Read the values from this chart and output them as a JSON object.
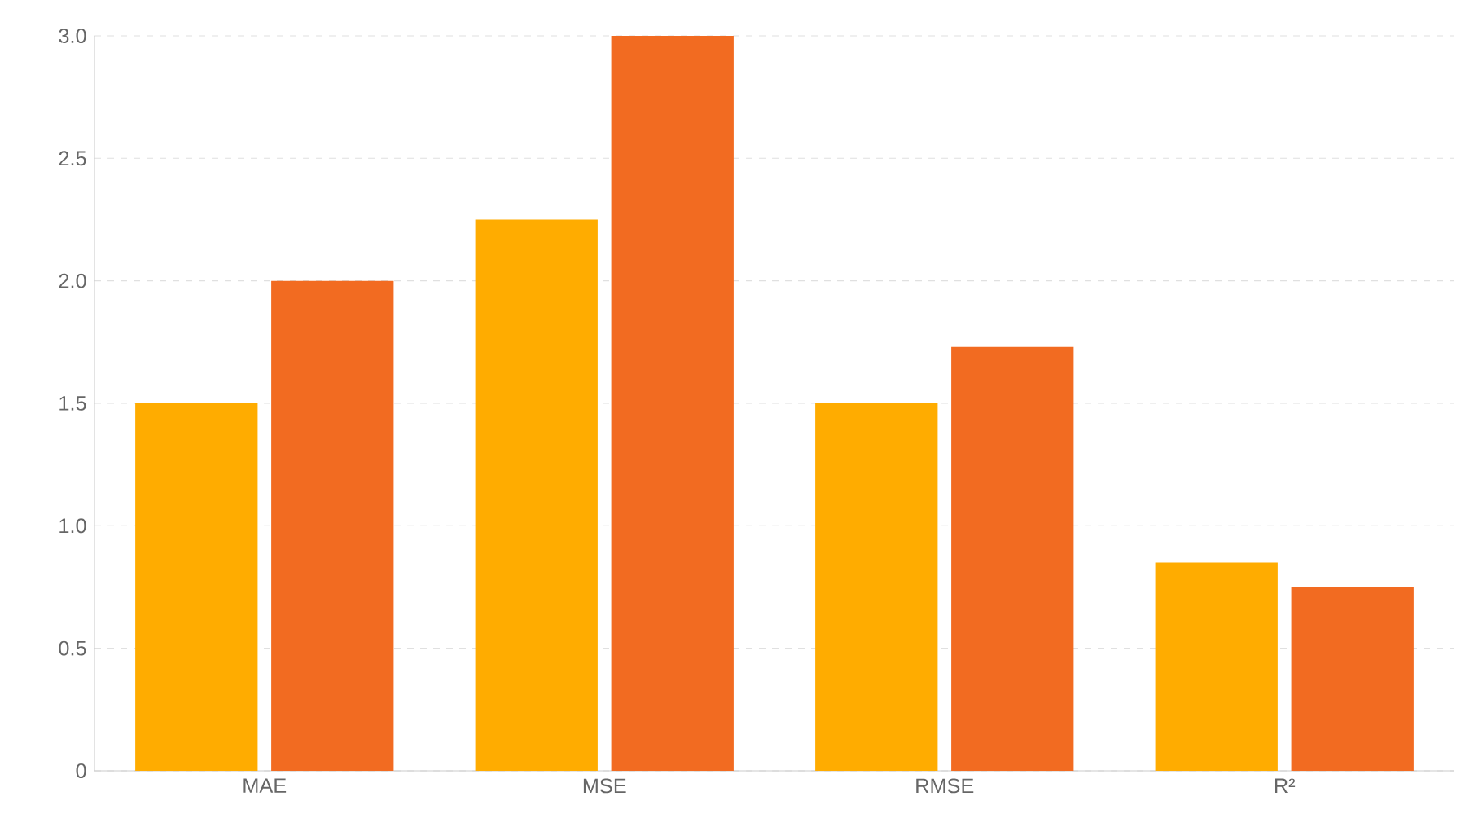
{
  "chart_data": {
    "type": "bar",
    "categories": [
      "MAE",
      "MSE",
      "RMSE",
      "R²"
    ],
    "series": [
      {
        "color": "#ffac00",
        "values": [
          1.5,
          2.25,
          1.5,
          0.85
        ]
      },
      {
        "color": "#f26b21",
        "values": [
          2.0,
          3.0,
          1.73,
          0.75
        ]
      }
    ],
    "ylim": [
      0,
      3
    ],
    "yticks": [
      0,
      0.5,
      {
        "value": 1,
        "label": "1.0"
      },
      1.5,
      {
        "value": 2,
        "label": "2.0"
      },
      2.5,
      {
        "value": 3,
        "label": "3.0"
      }
    ],
    "grid": "y"
  }
}
